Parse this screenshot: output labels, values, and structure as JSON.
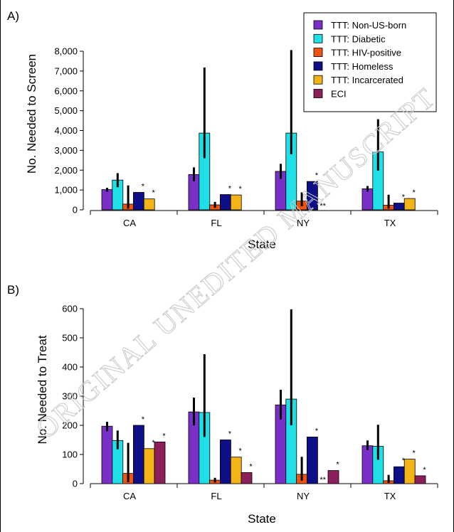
{
  "chart_data": [
    {
      "type": "bar",
      "panel_label": "A)",
      "xlabel": "State",
      "ylabel": "No. Needed to Screen",
      "ylim": [
        0,
        8000
      ],
      "yticks": [
        "0",
        "1,000",
        "2,000",
        "3,000",
        "4,000",
        "5,000",
        "6,000",
        "7,000",
        "8,000"
      ],
      "ytick_values": [
        0,
        1000,
        2000,
        3000,
        4000,
        5000,
        6000,
        7000,
        8000
      ],
      "categories": [
        "CA",
        "FL",
        "NY",
        "TX"
      ],
      "series": [
        {
          "name": "TTT: Non-US-born",
          "values": [
            1020,
            1780,
            1940,
            1060
          ],
          "err_low": [
            920,
            1440,
            1560,
            920
          ],
          "err_high": [
            1110,
            2140,
            2320,
            1200
          ]
        },
        {
          "name": "TTT: Diabetic",
          "values": [
            1500,
            3870,
            3870,
            2920
          ],
          "err_low": [
            1140,
            2600,
            2800,
            1980
          ],
          "err_high": [
            1850,
            7180,
            8060,
            4570
          ]
        },
        {
          "name": "TTT: HIV-positive",
          "values": [
            290,
            250,
            440,
            230
          ],
          "err_low": [
            60,
            100,
            180,
            60
          ],
          "err_high": [
            1230,
            400,
            880,
            760
          ]
        },
        {
          "name": "TTT: Homeless",
          "values": [
            880,
            770,
            1430,
            340
          ],
          "err_low": null,
          "err_high": null
        },
        {
          "name": "TTT: Incarcerated",
          "values": [
            550,
            750,
            null,
            570
          ],
          "err_low": null,
          "err_high": null
        },
        {
          "name": "ECI",
          "values": [
            null,
            null,
            null,
            null
          ],
          "err_low": null,
          "err_high": null
        }
      ],
      "annotations": [
        {
          "category": "CA",
          "series": "TTT: Homeless",
          "text": "*"
        },
        {
          "category": "CA",
          "series": "TTT: Incarcerated",
          "text": "*"
        },
        {
          "category": "FL",
          "series": "TTT: Homeless",
          "text": "*"
        },
        {
          "category": "FL",
          "series": "TTT: Incarcerated",
          "text": "*"
        },
        {
          "category": "NY",
          "series": "TTT: Homeless",
          "text": "*"
        },
        {
          "category": "NY",
          "series": "TTT: Incarcerated",
          "text": "**"
        },
        {
          "category": "TX",
          "series": "TTT: Homeless",
          "text": "*"
        },
        {
          "category": "TX",
          "series": "TTT: Incarcerated",
          "text": "*"
        }
      ]
    },
    {
      "type": "bar",
      "panel_label": "B)",
      "xlabel": "State",
      "ylabel": "No. Needed to Treat",
      "ylim": [
        0,
        600
      ],
      "yticks": [
        "0",
        "100",
        "200",
        "300",
        "400",
        "500",
        "600"
      ],
      "ytick_values": [
        0,
        100,
        200,
        300,
        400,
        500,
        600
      ],
      "categories": [
        "CA",
        "FL",
        "NY",
        "TX"
      ],
      "series": [
        {
          "name": "TTT: Non-US-born",
          "values": [
            197,
            246,
            270,
            130
          ],
          "err_low": [
            180,
            200,
            220,
            115
          ],
          "err_high": [
            212,
            295,
            322,
            148
          ]
        },
        {
          "name": "TTT: Diabetic",
          "values": [
            148,
            244,
            290,
            128
          ],
          "err_low": [
            118,
            160,
            200,
            82
          ],
          "err_high": [
            182,
            444,
            598,
            202
          ]
        },
        {
          "name": "TTT: HIV-positive",
          "values": [
            35,
            12,
            32,
            10
          ],
          "err_low": [
            5,
            4,
            10,
            3
          ],
          "err_high": [
            140,
            20,
            92,
            30
          ]
        },
        {
          "name": "TTT: Homeless",
          "values": [
            200,
            150,
            160,
            58
          ],
          "err_low": null,
          "err_high": null
        },
        {
          "name": "TTT: Incarcerated",
          "values": [
            120,
            91,
            null,
            84
          ],
          "err_low": null,
          "err_high": null
        },
        {
          "name": "ECI",
          "values": [
            143,
            38,
            45,
            27
          ],
          "err_low": null,
          "err_high": null
        }
      ],
      "annotations": [
        {
          "category": "CA",
          "series": "TTT: Homeless",
          "text": "*"
        },
        {
          "category": "CA",
          "series": "TTT: Incarcerated",
          "text": "*"
        },
        {
          "category": "CA",
          "series": "ECI",
          "text": "*"
        },
        {
          "category": "FL",
          "series": "TTT: Homeless",
          "text": "*"
        },
        {
          "category": "FL",
          "series": "TTT: Incarcerated",
          "text": "*"
        },
        {
          "category": "FL",
          "series": "ECI",
          "text": "*"
        },
        {
          "category": "NY",
          "series": "TTT: Homeless",
          "text": "*"
        },
        {
          "category": "NY",
          "series": "TTT: Incarcerated",
          "text": "**"
        },
        {
          "category": "NY",
          "series": "ECI",
          "text": "*"
        },
        {
          "category": "TX",
          "series": "TTT: Homeless",
          "text": "*"
        },
        {
          "category": "TX",
          "series": "TTT: Incarcerated",
          "text": "*"
        },
        {
          "category": "TX",
          "series": "ECI",
          "text": "*"
        }
      ]
    }
  ],
  "legend": {
    "entries": [
      {
        "label": "TTT: Non-US-born",
        "color": "#7b2fc9"
      },
      {
        "label": "TTT: Diabetic",
        "color": "#1fe0e6"
      },
      {
        "label": "TTT: HIV-positive",
        "color": "#f0520f"
      },
      {
        "label": "TTT: Homeless",
        "color": "#0e0e86"
      },
      {
        "label": "TTT: Incarcerated",
        "color": "#f2b416"
      },
      {
        "label": "ECI",
        "color": "#8a1f5a"
      }
    ],
    "placement": "top-right"
  },
  "watermark": "ORIGINAL UNEDITED MANUSCRIPT"
}
